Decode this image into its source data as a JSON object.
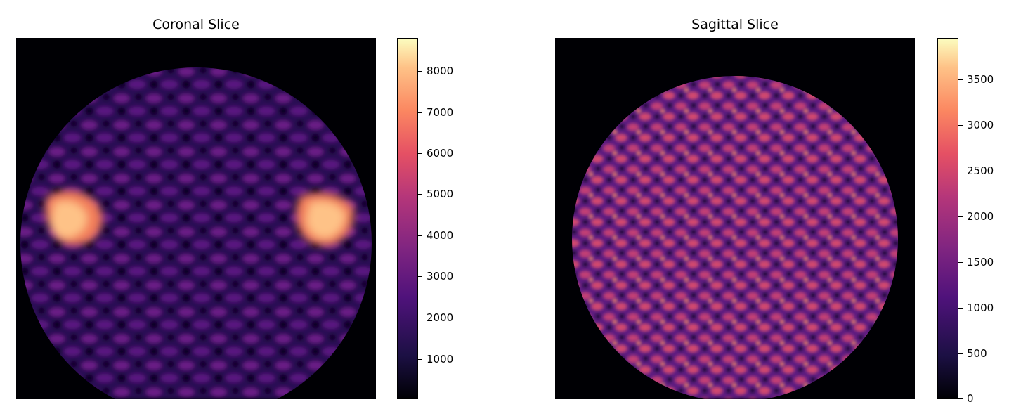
{
  "panels": [
    {
      "title": "Coronal Slice",
      "colormap": "magma",
      "colorbar_ticks": [
        "1000",
        "2000",
        "3000",
        "4000",
        "5000",
        "6000",
        "7000",
        "8000"
      ]
    },
    {
      "title": "Sagittal Slice",
      "colormap": "magma",
      "colorbar_ticks": [
        "0",
        "500",
        "1000",
        "1500",
        "2000",
        "2500",
        "3000",
        "3500"
      ]
    }
  ],
  "colors": {
    "background": "#000004",
    "magma_stops": [
      "#000004",
      "#1c1044",
      "#4f127b",
      "#812581",
      "#b5367a",
      "#e55064",
      "#fb8761",
      "#fec287",
      "#fcfdbf"
    ]
  }
}
